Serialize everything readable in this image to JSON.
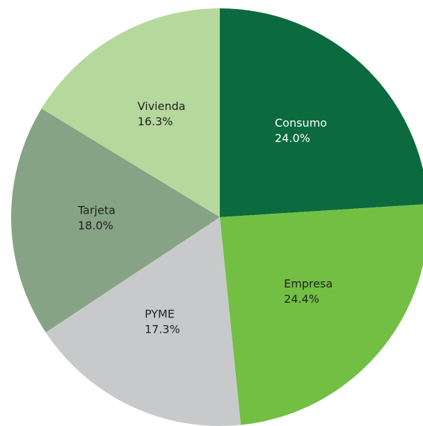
{
  "chart_data": {
    "type": "pie",
    "categories": [
      "Consumo",
      "Empresa",
      "PYME",
      "Tarjeta",
      "Vivienda"
    ],
    "values": [
      24.0,
      24.4,
      17.3,
      18.0,
      16.3
    ],
    "value_labels": [
      "24.0%",
      "24.4%",
      "17.3%",
      "18.0%",
      "16.3%"
    ],
    "colors": [
      "#0b6b3e",
      "#72bf44",
      "#c8c9cb",
      "#87a386",
      "#b5d89c"
    ],
    "start_angle": 0,
    "direction": "clockwise"
  }
}
